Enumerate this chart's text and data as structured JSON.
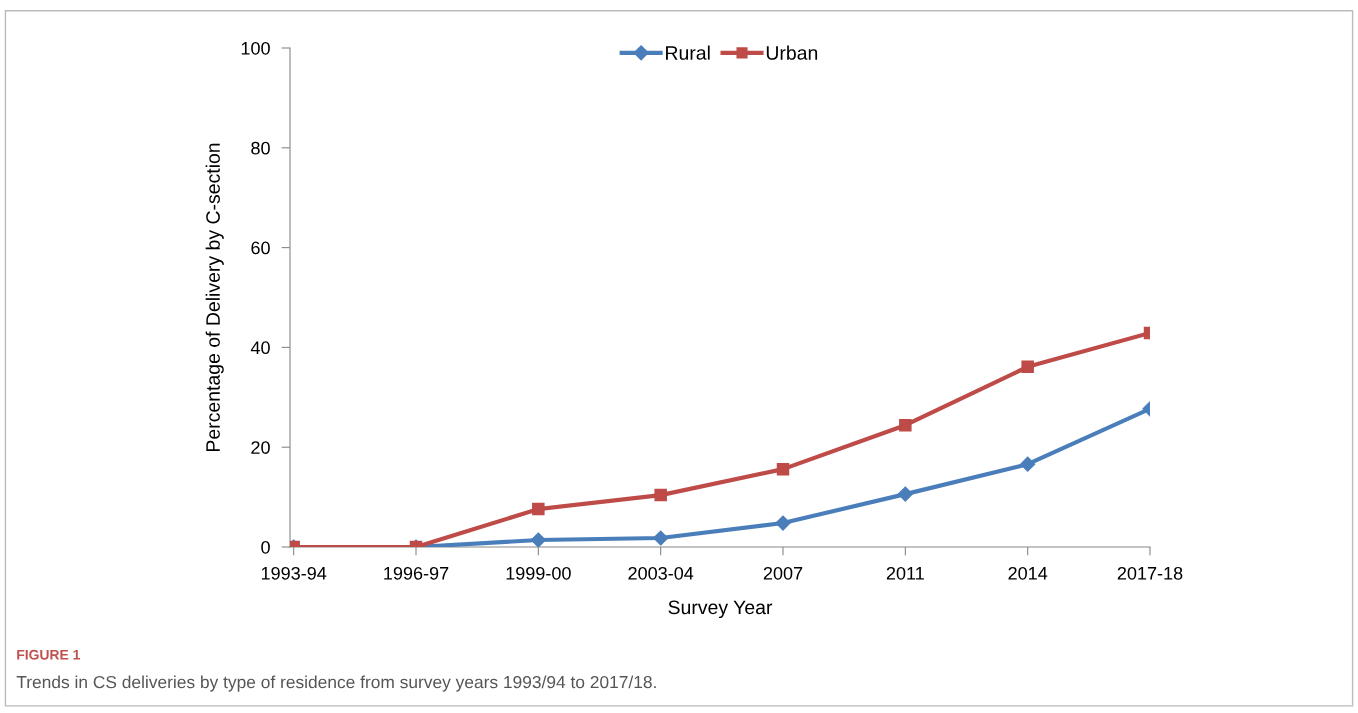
{
  "chart_data": {
    "type": "line",
    "categories": [
      "1993-94",
      "1996-97",
      "1999-00",
      "2003-04",
      "2007",
      "2011",
      "2014",
      "2017-18"
    ],
    "series": [
      {
        "name": "Rural",
        "color": "#4a7ebb",
        "marker": "diamond",
        "values": [
          0,
          0,
          1.4,
          1.8,
          4.8,
          10.6,
          16.6,
          27.7
        ]
      },
      {
        "name": "Urban",
        "color": "#be4b48",
        "marker": "square",
        "values": [
          0,
          0,
          7.6,
          10.4,
          15.6,
          24.4,
          36.1,
          42.9
        ]
      }
    ],
    "xlabel": "Survey Year",
    "ylabel": "Percentage of Delivery by C-section",
    "ylim": [
      0,
      100
    ],
    "yticks": [
      0,
      20,
      40,
      60,
      80,
      100
    ],
    "grid": false,
    "legend": "top",
    "line_style": "solid",
    "annotations": [
      "FIGURE 1",
      "Trends in CS deliveries by type of residence from survey years 1993/94 to 2017/18."
    ]
  }
}
